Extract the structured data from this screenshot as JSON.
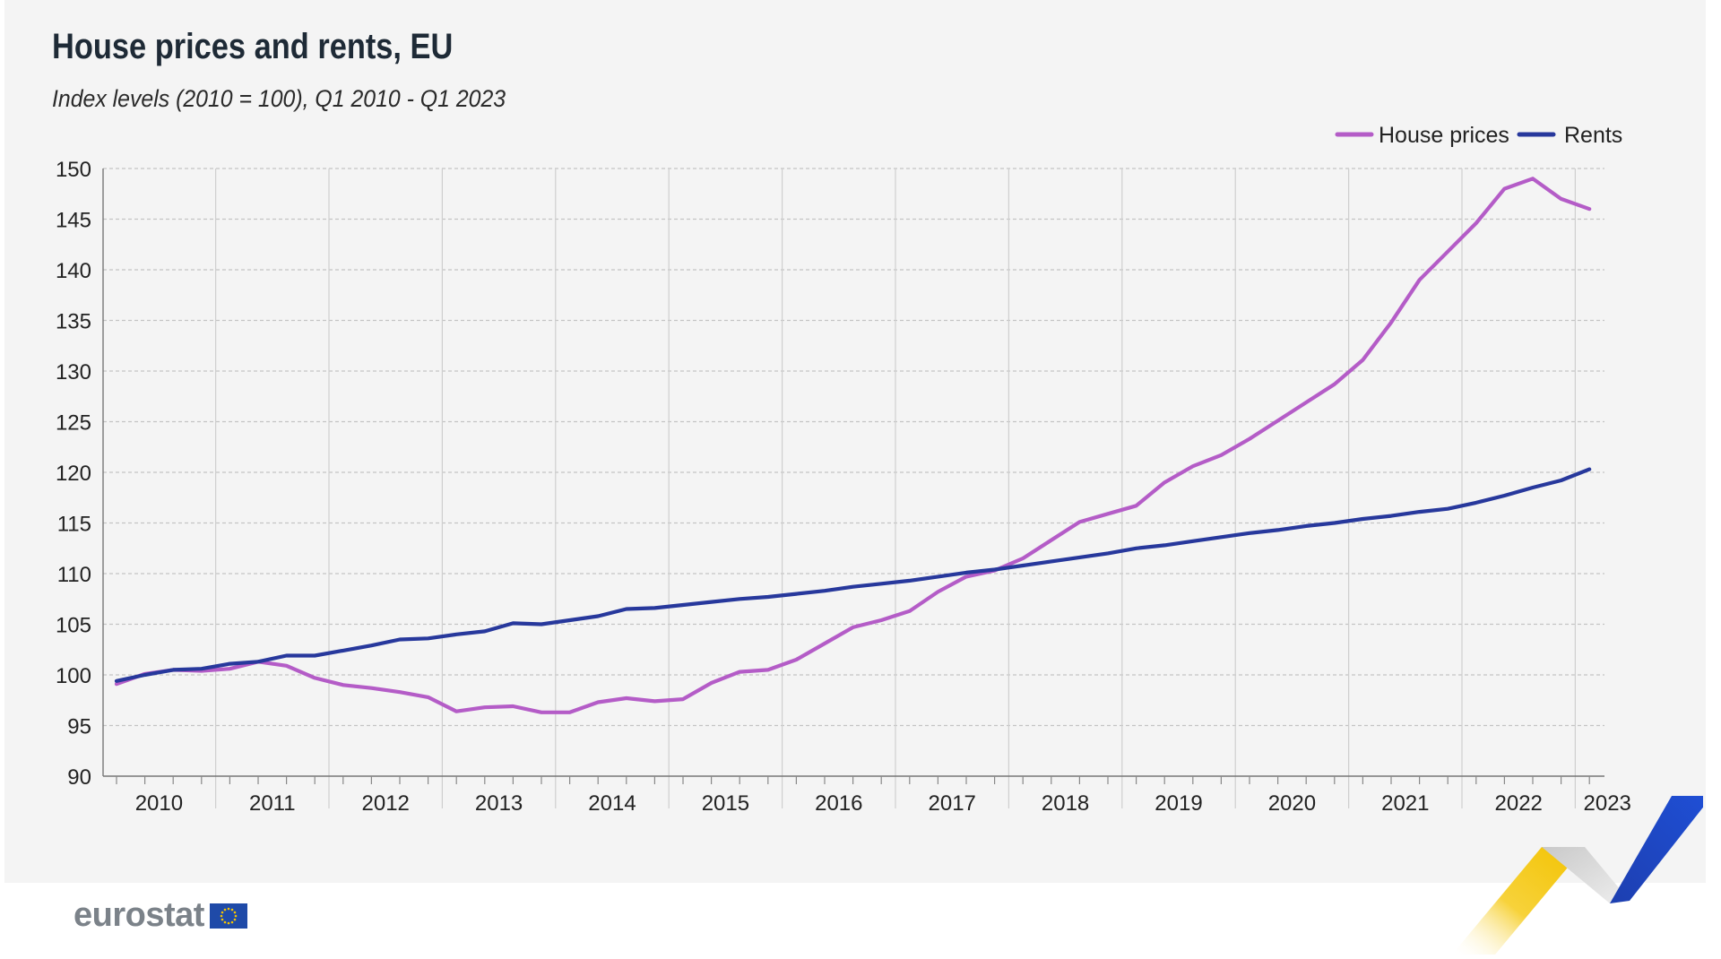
{
  "title": "House prices and rents, EU",
  "subtitle": "Index levels (2010 = 100),  Q1 2010 - Q1 2023",
  "logo_text": "eurostat",
  "colors": {
    "house_prices": "#b45cc7",
    "rents": "#27389c",
    "panel_background": "#f4f4f4"
  },
  "chart_data": {
    "type": "line",
    "title": "House prices and rents, EU",
    "subtitle": "Index levels (2010 = 100),  Q1 2010 - Q1 2023",
    "xlabel": "",
    "ylabel": "",
    "x_quarters": [
      "2010Q1",
      "2010Q2",
      "2010Q3",
      "2010Q4",
      "2011Q1",
      "2011Q2",
      "2011Q3",
      "2011Q4",
      "2012Q1",
      "2012Q2",
      "2012Q3",
      "2012Q4",
      "2013Q1",
      "2013Q2",
      "2013Q3",
      "2013Q4",
      "2014Q1",
      "2014Q2",
      "2014Q3",
      "2014Q4",
      "2015Q1",
      "2015Q2",
      "2015Q3",
      "2015Q4",
      "2016Q1",
      "2016Q2",
      "2016Q3",
      "2016Q4",
      "2017Q1",
      "2017Q2",
      "2017Q3",
      "2017Q4",
      "2018Q1",
      "2018Q2",
      "2018Q3",
      "2018Q4",
      "2019Q1",
      "2019Q2",
      "2019Q3",
      "2019Q4",
      "2020Q1",
      "2020Q2",
      "2020Q3",
      "2020Q4",
      "2021Q1",
      "2021Q2",
      "2021Q3",
      "2021Q4",
      "2022Q1",
      "2022Q2",
      "2022Q3",
      "2022Q4",
      "2023Q1"
    ],
    "x_tick_labels": [
      "2010",
      "2011",
      "2012",
      "2013",
      "2014",
      "2015",
      "2016",
      "2017",
      "2018",
      "2019",
      "2020",
      "2021",
      "2022",
      "2023"
    ],
    "y_ticks": [
      90,
      95,
      100,
      105,
      110,
      115,
      120,
      125,
      130,
      135,
      140,
      145,
      150
    ],
    "ylim": [
      90,
      150
    ],
    "grid": true,
    "legend_position": "top-right",
    "series": [
      {
        "name": "House prices",
        "color": "#b45cc7",
        "values": [
          99.1,
          100.1,
          100.5,
          100.4,
          100.6,
          101.3,
          100.9,
          99.7,
          99.0,
          98.7,
          98.3,
          97.8,
          96.4,
          96.8,
          96.9,
          96.3,
          96.3,
          97.3,
          97.7,
          97.4,
          97.6,
          99.2,
          100.3,
          100.5,
          101.5,
          103.1,
          104.7,
          105.4,
          106.3,
          108.2,
          109.7,
          110.3,
          111.5,
          113.3,
          115.1,
          115.9,
          116.7,
          119.0,
          120.6,
          121.7,
          123.3,
          125.1,
          126.9,
          128.7,
          131.1,
          134.8,
          139.0,
          141.8,
          144.6,
          148.0,
          149.0,
          147.0,
          146.0
        ]
      },
      {
        "name": "Rents",
        "color": "#27389c",
        "values": [
          99.4,
          100.0,
          100.5,
          100.6,
          101.1,
          101.3,
          101.9,
          101.9,
          102.4,
          102.9,
          103.5,
          103.6,
          104.0,
          104.3,
          105.1,
          105.0,
          105.4,
          105.8,
          106.5,
          106.6,
          106.9,
          107.2,
          107.5,
          107.7,
          108.0,
          108.3,
          108.7,
          109.0,
          109.3,
          109.7,
          110.1,
          110.4,
          110.8,
          111.2,
          111.6,
          112.0,
          112.5,
          112.8,
          113.2,
          113.6,
          114.0,
          114.3,
          114.7,
          115.0,
          115.4,
          115.7,
          116.1,
          116.4,
          117.0,
          117.7,
          118.5,
          119.2,
          120.3
        ]
      }
    ]
  }
}
